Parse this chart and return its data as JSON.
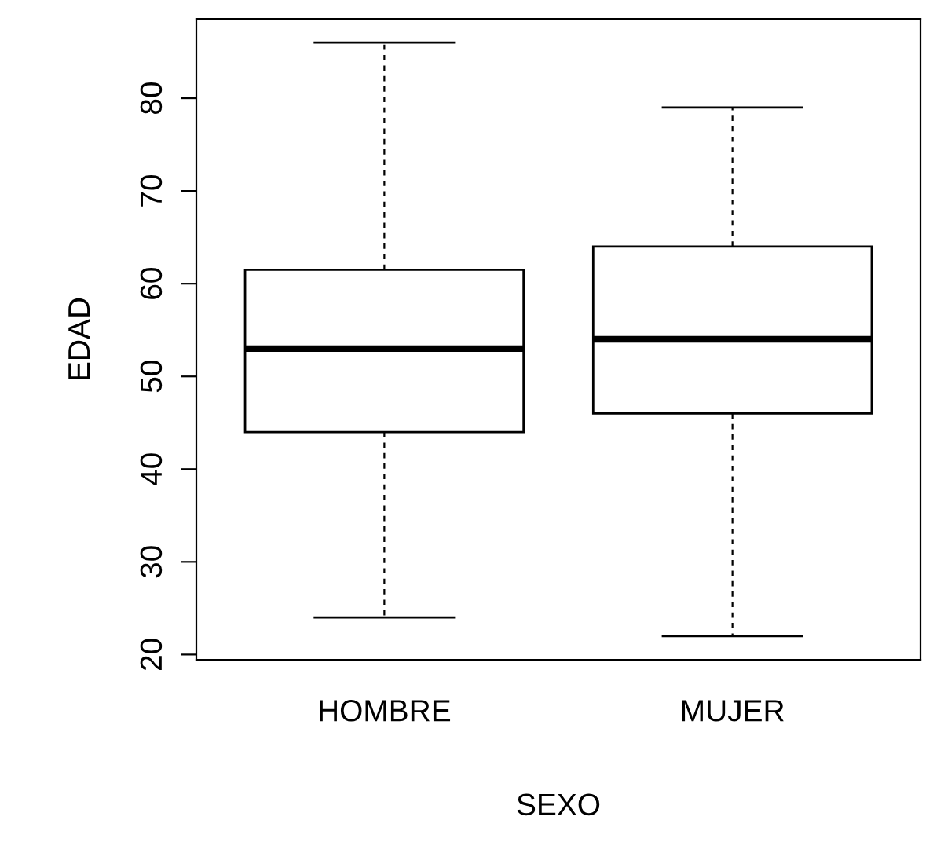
{
  "chart_data": {
    "type": "box",
    "xlabel": "SEXO",
    "ylabel": "EDAD",
    "categories": [
      "HOMBRE",
      "MUJER"
    ],
    "boxes": [
      {
        "low": 24,
        "q1": 44,
        "median": 53,
        "q3": 61.5,
        "high": 86
      },
      {
        "low": 22,
        "q1": 46,
        "median": 54,
        "q3": 64,
        "high": 79
      }
    ],
    "ylim": [
      19.44,
      88.56
    ],
    "yticks": [
      20,
      30,
      40,
      50,
      60,
      70,
      80
    ],
    "grid": false,
    "color": "#ffffff"
  }
}
